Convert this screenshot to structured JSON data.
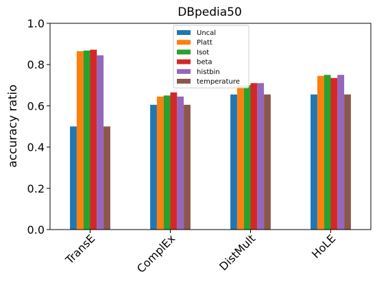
{
  "chart_data": {
    "type": "bar",
    "title": "DBpedia50",
    "xlabel": "",
    "ylabel": "accuracy ratio",
    "ylim": [
      0,
      1.0
    ],
    "yticks": [
      "0.0",
      "0.2",
      "0.4",
      "0.6",
      "0.8",
      "1.0"
    ],
    "categories": [
      "TransE",
      "ComplEx",
      "DistMult",
      "HoLE"
    ],
    "legend_position": "top-center",
    "grid": false,
    "series": [
      {
        "name": "Uncal",
        "color": "#1f77b4",
        "values": [
          0.5,
          0.605,
          0.655,
          0.655
        ]
      },
      {
        "name": "Platt",
        "color": "#ff7f0e",
        "values": [
          0.865,
          0.645,
          0.7,
          0.745
        ]
      },
      {
        "name": "Isot",
        "color": "#2ca02c",
        "values": [
          0.868,
          0.65,
          0.7,
          0.75
        ]
      },
      {
        "name": "beta",
        "color": "#d62728",
        "values": [
          0.872,
          0.665,
          0.71,
          0.735
        ]
      },
      {
        "name": "histbin",
        "color": "#9467bd",
        "values": [
          0.845,
          0.645,
          0.71,
          0.75
        ]
      },
      {
        "name": "temperature",
        "color": "#8c564b",
        "values": [
          0.5,
          0.605,
          0.655,
          0.655
        ]
      }
    ]
  }
}
